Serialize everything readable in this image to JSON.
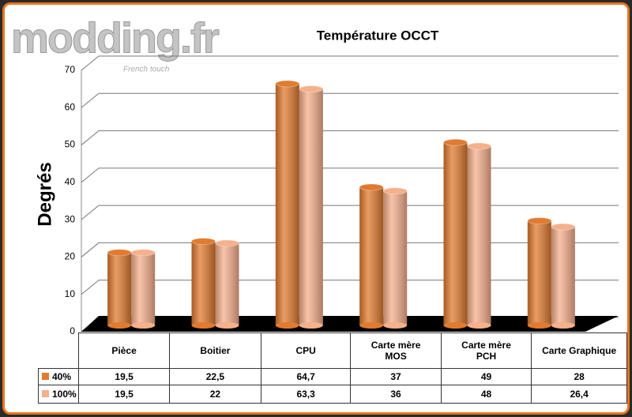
{
  "watermark": {
    "text": "modding.fr",
    "tagline": "French touch"
  },
  "chart_data": {
    "type": "bar",
    "title": "Température OCCT",
    "y_label": "Degrés",
    "categories": [
      "Pièce",
      "Boitier",
      "CPU",
      "Carte mère MOS",
      "Carte mère PCH",
      "Carte Graphique"
    ],
    "series": [
      {
        "name": "40%",
        "color": "#e07b30",
        "values": [
          19.5,
          22.5,
          64.7,
          37,
          49,
          28
        ],
        "value_labels": [
          "19,5",
          "22,5",
          "64,7",
          "37",
          "49",
          "28"
        ]
      },
      {
        "name": "100%",
        "color": "#f5b08c",
        "values": [
          19.5,
          22,
          63.3,
          36,
          48,
          26.4
        ],
        "value_labels": [
          "19,5",
          "22",
          "63,3",
          "36",
          "48",
          "26,4"
        ]
      }
    ],
    "ylim": [
      0,
      70
    ],
    "yticks": [
      0,
      10,
      20,
      30,
      40,
      50,
      60,
      70
    ],
    "grid": true
  }
}
